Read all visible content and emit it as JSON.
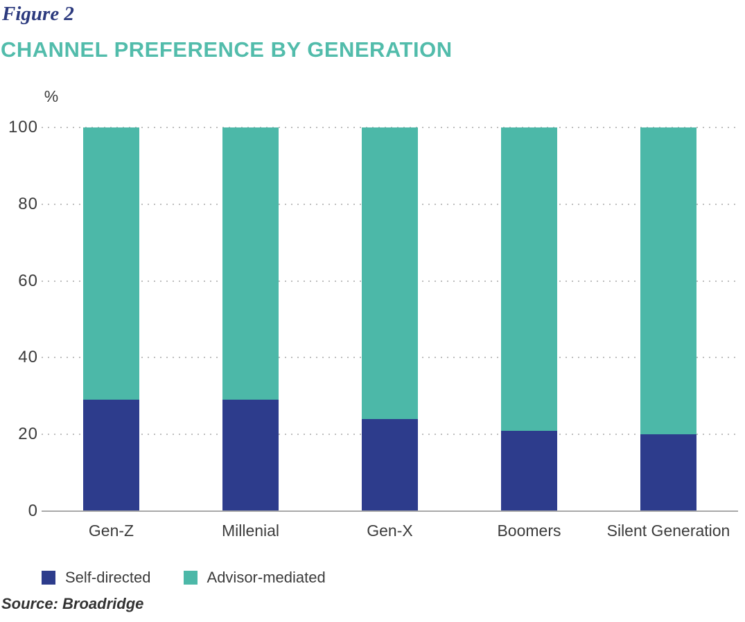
{
  "figure_label": "Figure 2",
  "title": "CHANNEL PREFERENCE BY GENERATION",
  "source": "Source: Broadridge",
  "colors": {
    "self_directed": "#2d3c8c",
    "advisor_mediated": "#4cb8a8",
    "title_teal": "#52bcab",
    "figure_label_navy": "#2c3a7e",
    "axis_text": "#3b3b3b",
    "gridline": "#bdbdbd",
    "baseline": "#a8a8a8"
  },
  "chart_data": {
    "type": "bar",
    "stacked": true,
    "title": "CHANNEL PREFERENCE BY GENERATION",
    "xlabel": "",
    "ylabel": "%",
    "ylim": [
      0,
      100
    ],
    "yticks": [
      0,
      20,
      40,
      60,
      80,
      100
    ],
    "grid": "horizontal dotted",
    "legend_position": "bottom-left",
    "categories": [
      "Gen-Z",
      "Millenial",
      "Gen-X",
      "Boomers",
      "Silent Generation"
    ],
    "series": [
      {
        "name": "Self-directed",
        "color": "#2d3c8c",
        "values": [
          29,
          29,
          24,
          21,
          20
        ]
      },
      {
        "name": "Advisor-mediated",
        "color": "#4cb8a8",
        "values": [
          71,
          71,
          76,
          79,
          80
        ]
      }
    ]
  },
  "legend": {
    "items": [
      {
        "label": "Self-directed",
        "color": "#2d3c8c"
      },
      {
        "label": "Advisor-mediated",
        "color": "#4cb8a8"
      }
    ]
  }
}
